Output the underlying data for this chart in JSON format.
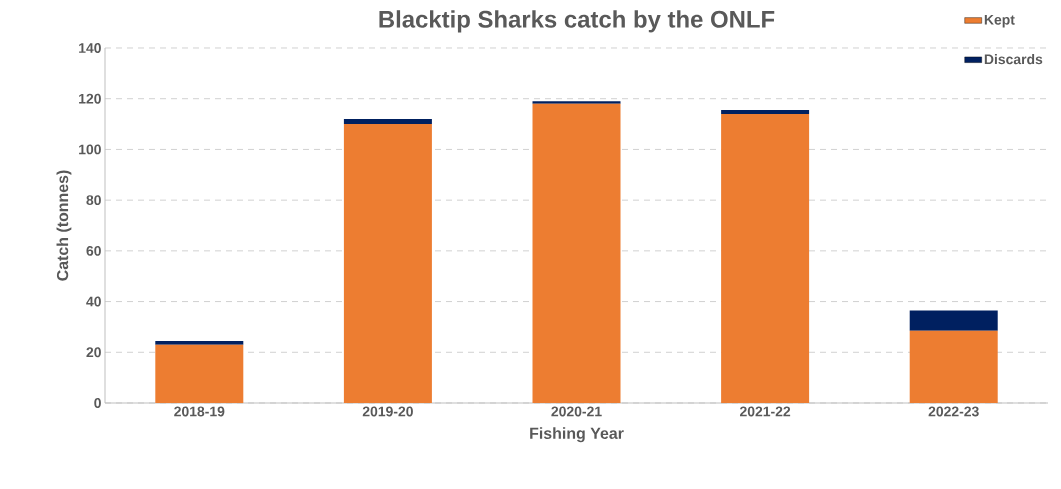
{
  "chart_data": {
    "type": "bar",
    "title": "Blacktip Sharks catch by the ONLF",
    "xlabel": "Fishing Year",
    "ylabel": "Catch (tonnes)",
    "categories": [
      "2018-19",
      "2019-20",
      "2020-21",
      "2021-22",
      "2022-23"
    ],
    "series": [
      {
        "name": "Kept",
        "color": "#ed7d31",
        "values": [
          23,
          110,
          118,
          114,
          28.5
        ]
      },
      {
        "name": "Discards",
        "color": "#002060",
        "values": [
          1.5,
          2,
          1,
          1.5,
          8
        ]
      }
    ],
    "stacked": true,
    "ylim": [
      0,
      140
    ],
    "yticks": [
      0,
      20,
      40,
      60,
      80,
      100,
      120,
      140
    ],
    "grid": "y",
    "legend": "top right"
  }
}
